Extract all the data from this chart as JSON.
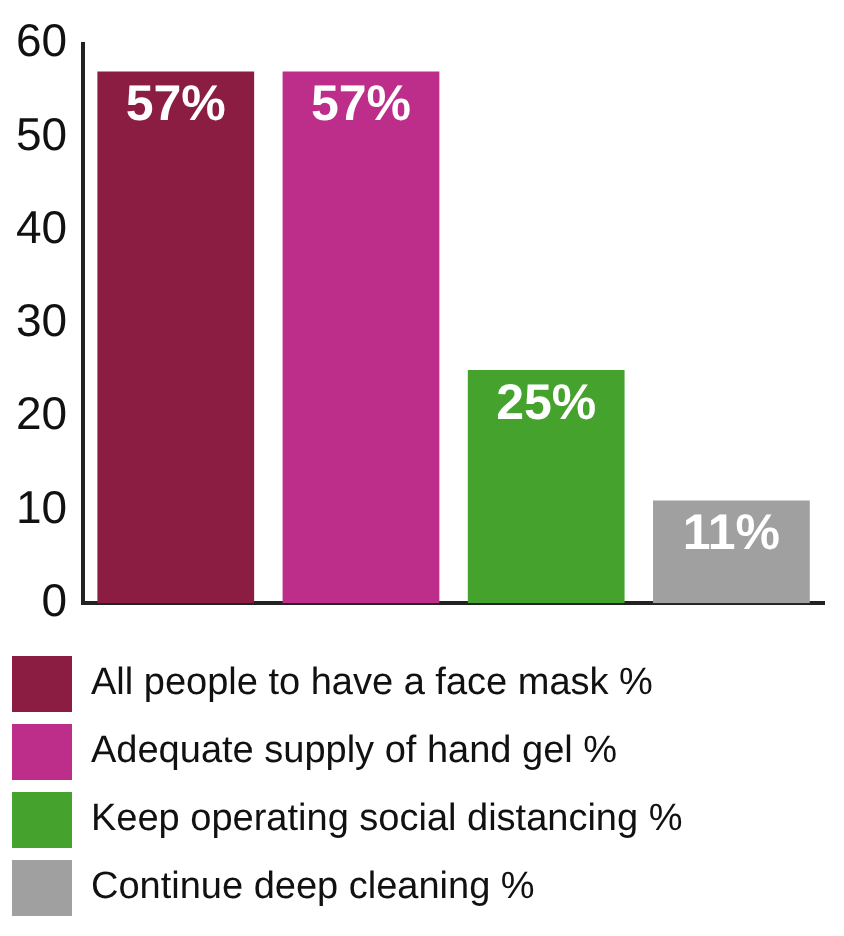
{
  "chart_data": {
    "type": "bar",
    "categories": [
      null,
      null,
      null,
      null
    ],
    "series": [
      {
        "name": "All people to have a face mask %",
        "color": "#8b1c42",
        "values": [
          57,
          null,
          null,
          null
        ]
      },
      {
        "name": "Adequate supply of hand gel %",
        "color": "#bc2e8a",
        "values": [
          null,
          57,
          null,
          null
        ]
      },
      {
        "name": "Keep operating social distancing %",
        "color": "#45a22d",
        "values": [
          null,
          null,
          25,
          null
        ]
      },
      {
        "name": "Continue deep cleaning %",
        "color": "#a0a0a0",
        "values": [
          null,
          null,
          null,
          11
        ]
      }
    ],
    "value_labels": [
      "57%",
      "57%",
      "25%",
      "11%"
    ],
    "ylim": [
      0,
      60
    ],
    "yticks": [
      0,
      10,
      20,
      30,
      40,
      50,
      60
    ],
    "grid": false,
    "legend": "bottom"
  }
}
